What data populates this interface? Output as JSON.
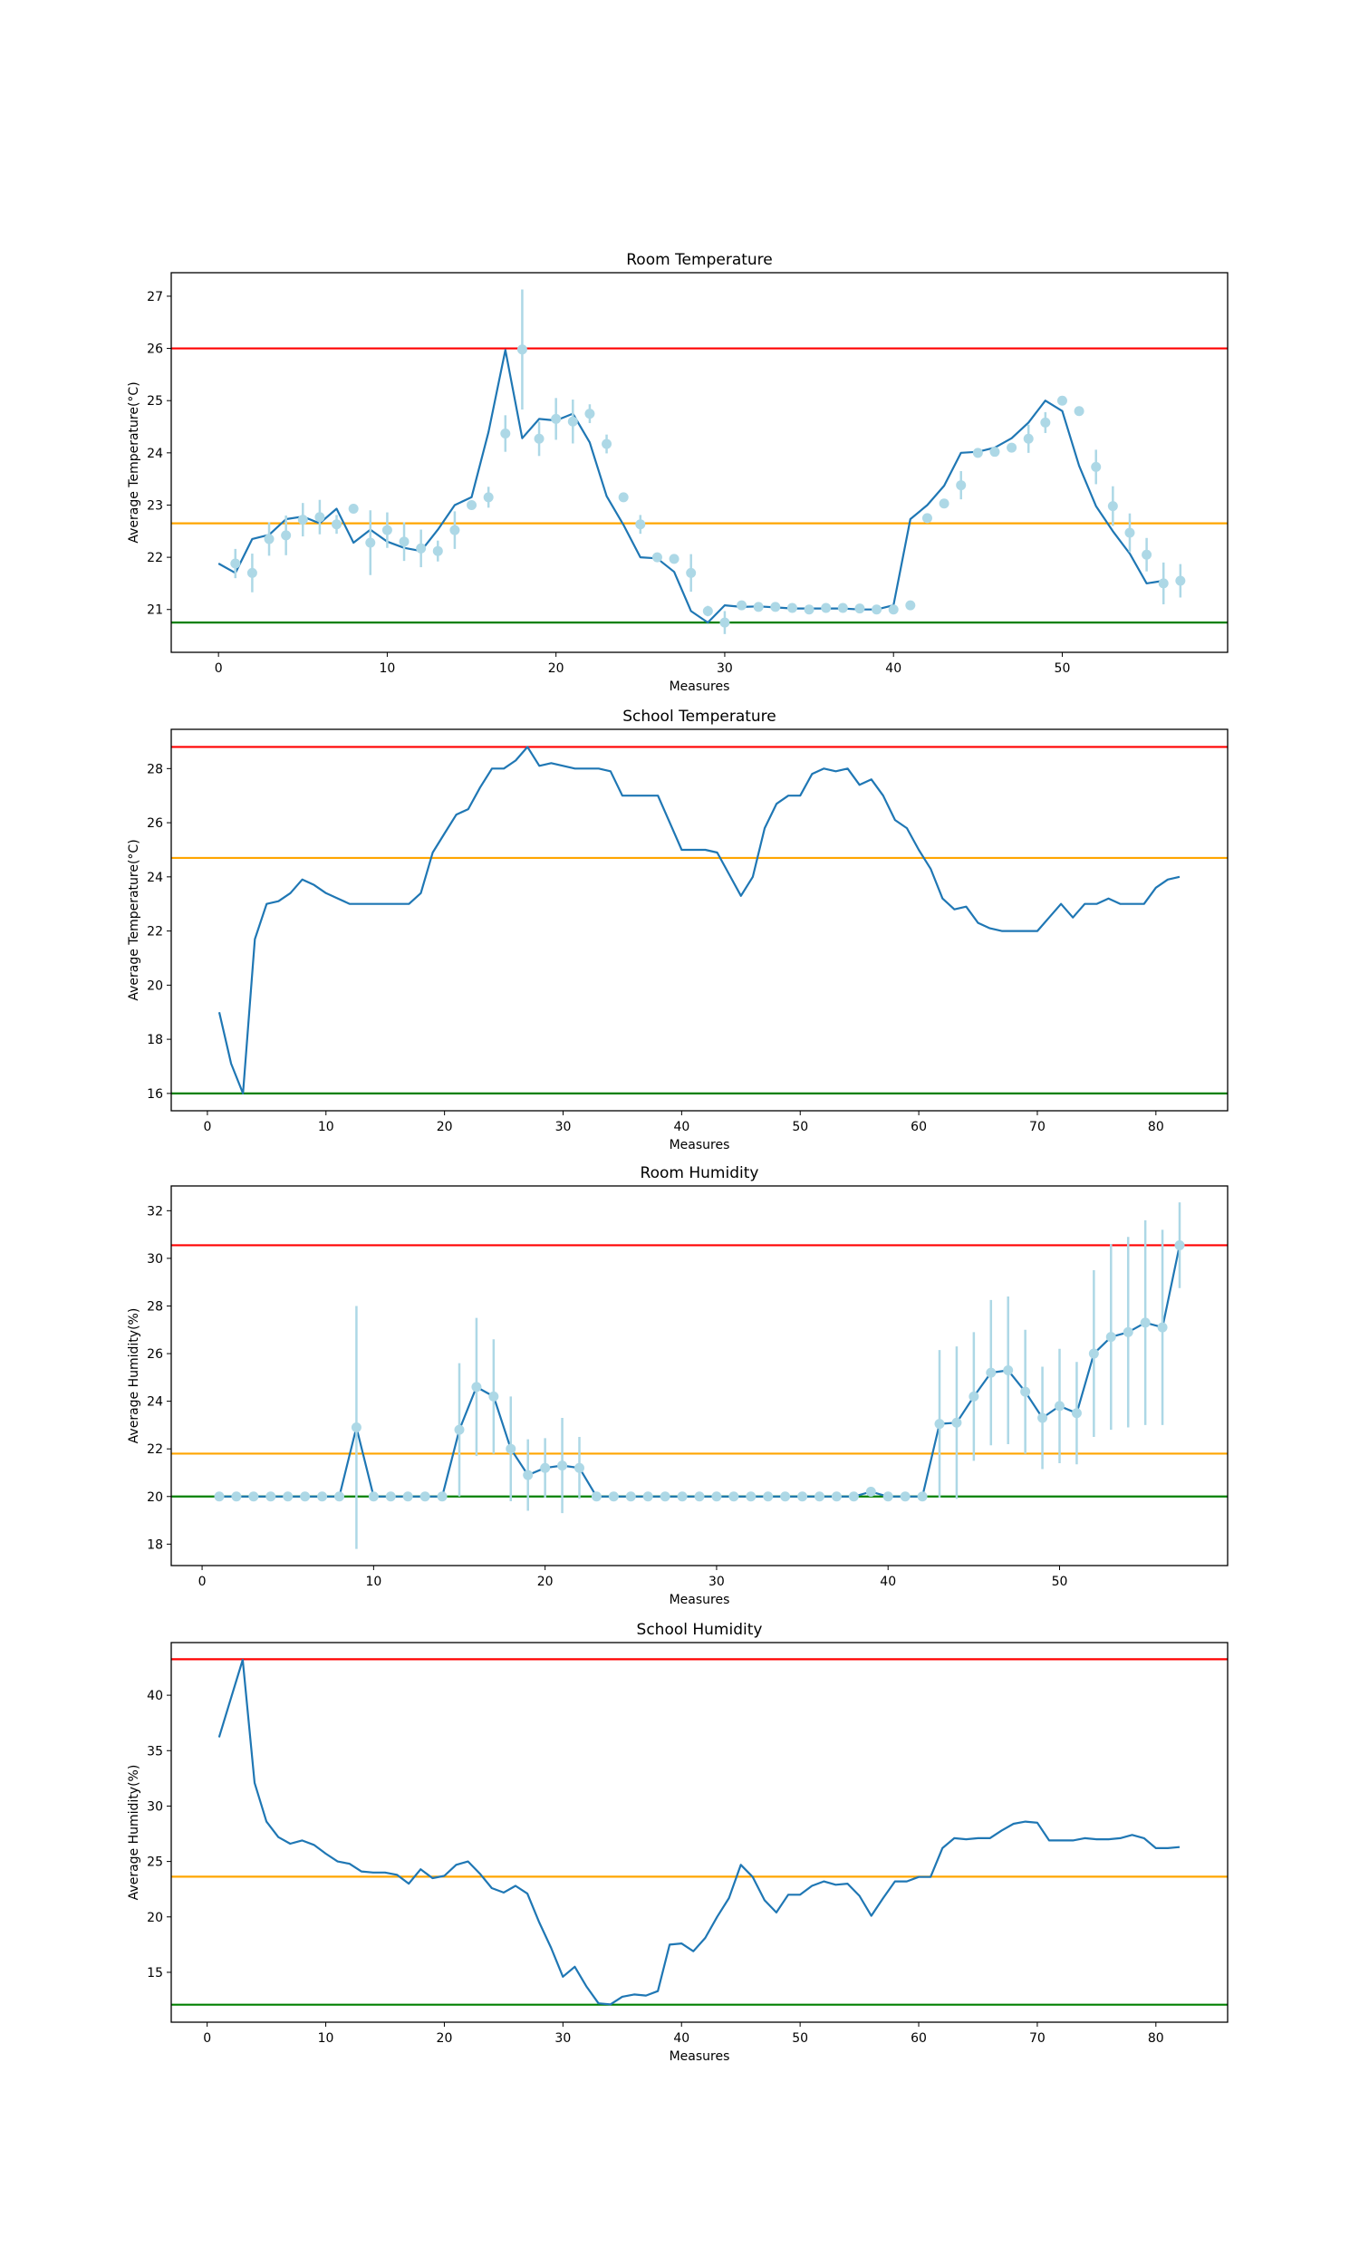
{
  "chart_data": [
    {
      "type": "line",
      "title": "Room Temperature",
      "xlabel": "Measures",
      "ylabel": "Average Temperature(°C)",
      "xlim": [
        -2.8,
        59.8
      ],
      "ylim": [
        20.18,
        27.45
      ],
      "xticks": [
        0,
        10,
        20,
        30,
        40,
        50
      ],
      "yticks": [
        21,
        22,
        23,
        24,
        25,
        26,
        27
      ],
      "grid": false,
      "hlines": [
        {
          "y": 26.0,
          "color": "#ff0000"
        },
        {
          "y": 22.65,
          "color": "#ffa500"
        },
        {
          "y": 20.75,
          "color": "#008000"
        }
      ],
      "line": {
        "color": "#1f77b4",
        "x_start": 0,
        "values": [
          21.88,
          21.7,
          22.35,
          22.43,
          22.73,
          22.78,
          22.65,
          22.93,
          22.28,
          22.53,
          22.3,
          22.18,
          22.12,
          22.53,
          23.0,
          23.15,
          24.4,
          25.97,
          24.28,
          24.65,
          24.62,
          24.75,
          24.2,
          23.17,
          22.62,
          22.0,
          21.98,
          21.72,
          20.97,
          20.75,
          21.08,
          21.05,
          21.06,
          21.04,
          21.02,
          21.02,
          21.02,
          21.02,
          21.0,
          21.0,
          21.08,
          22.73,
          23.0,
          23.37,
          24.0,
          24.02,
          24.1,
          24.28,
          24.58,
          25.0,
          24.8,
          23.75,
          22.98,
          22.5,
          22.07,
          21.5,
          21.55
        ]
      },
      "errorbar": {
        "color": "#add8e6",
        "x_start": 1,
        "values": [
          21.88,
          21.7,
          22.35,
          22.42,
          22.72,
          22.77,
          22.63,
          22.93,
          22.28,
          22.52,
          22.3,
          22.17,
          22.12,
          22.52,
          23.0,
          23.15,
          24.37,
          25.98,
          24.27,
          24.65,
          24.6,
          24.75,
          24.17,
          23.15,
          22.63,
          22.0,
          21.97,
          21.7,
          20.97,
          20.75,
          21.08,
          21.05,
          21.05,
          21.03,
          21.0,
          21.03,
          21.03,
          21.02,
          21.0,
          21.0,
          21.08,
          22.75,
          23.03,
          23.38,
          24.0,
          24.02,
          24.1,
          24.27,
          24.58,
          25.0,
          24.8,
          23.73,
          22.98,
          22.47,
          22.05,
          21.5,
          21.55
        ],
        "errors": [
          0.28,
          0.37,
          0.32,
          0.38,
          0.32,
          0.33,
          0.18,
          0,
          0.62,
          0.34,
          0.37,
          0.36,
          0.2,
          0.36,
          0,
          0.2,
          0.35,
          1.15,
          0.33,
          0.4,
          0.42,
          0.18,
          0.18,
          0.08,
          0.18,
          0,
          0,
          0.36,
          0.1,
          0.22,
          0,
          0,
          0,
          0,
          0,
          0,
          0,
          0,
          0,
          0,
          0,
          0,
          0,
          0.27,
          0,
          0,
          0.08,
          0.27,
          0.2,
          0,
          0.08,
          0.33,
          0.38,
          0.37,
          0.32,
          0.4,
          0.32
        ]
      }
    },
    {
      "type": "line",
      "title": "School Temperature",
      "xlabel": "Measures",
      "ylabel": "Average Temperature(°C)",
      "xlim": [
        -3.05,
        86.05
      ],
      "ylim": [
        15.36,
        29.45
      ],
      "xticks": [
        0,
        10,
        20,
        30,
        40,
        50,
        60,
        70,
        80
      ],
      "yticks": [
        16,
        18,
        20,
        22,
        24,
        26,
        28
      ],
      "grid": false,
      "hlines": [
        {
          "y": 28.8,
          "color": "#ff0000"
        },
        {
          "y": 24.7,
          "color": "#ffa500"
        },
        {
          "y": 16.0,
          "color": "#008000"
        }
      ],
      "line": {
        "color": "#1f77b4",
        "x_start": 1,
        "values": [
          19.0,
          17.1,
          16.0,
          21.7,
          23.0,
          23.1,
          23.4,
          23.9,
          23.7,
          23.4,
          23.2,
          23.0,
          23.0,
          23.0,
          23.0,
          23.0,
          23.0,
          23.4,
          24.9,
          25.6,
          26.3,
          26.5,
          27.3,
          28.0,
          28.0,
          28.3,
          28.8,
          28.1,
          28.2,
          28.1,
          28.0,
          28.0,
          28.0,
          27.9,
          27.0,
          27.0,
          27.0,
          27.0,
          26.0,
          25.0,
          25.0,
          25.0,
          24.9,
          24.1,
          23.3,
          24.0,
          25.8,
          26.7,
          27.0,
          27.0,
          27.8,
          28.0,
          27.9,
          28.0,
          27.4,
          27.6,
          27.0,
          26.1,
          25.8,
          25.0,
          24.3,
          23.2,
          22.8,
          22.9,
          22.3,
          22.1,
          22.0,
          22.0,
          22.0,
          22.0,
          22.5,
          23.0,
          22.5,
          23.0,
          23.0,
          23.2,
          23.0,
          23.0,
          23.0,
          23.6,
          23.9,
          24.0
        ]
      }
    },
    {
      "type": "line",
      "title": "Room Humidity",
      "xlabel": "Measures",
      "ylabel": "Average Humidity(%)",
      "xlim": [
        -1.8,
        59.8
      ],
      "ylim": [
        17.1,
        33.04
      ],
      "xticks": [
        0,
        10,
        20,
        30,
        40,
        50
      ],
      "yticks": [
        18,
        20,
        22,
        24,
        26,
        28,
        30,
        32
      ],
      "grid": false,
      "hlines": [
        {
          "y": 30.55,
          "color": "#ff0000"
        },
        {
          "y": 21.8,
          "color": "#ffa500"
        },
        {
          "y": 20.0,
          "color": "#008000"
        }
      ],
      "line": {
        "color": "#1f77b4",
        "x_start": 1,
        "values": [
          20,
          20,
          20,
          20,
          20,
          20,
          20,
          20,
          22.9,
          20,
          20,
          20,
          20,
          20,
          22.8,
          24.6,
          24.2,
          22.0,
          20.9,
          21.2,
          21.3,
          21.2,
          20,
          20,
          20,
          20,
          20,
          20,
          20,
          20,
          20,
          20,
          20,
          20,
          20,
          20,
          20,
          20,
          20.2,
          20,
          20,
          20,
          23.05,
          23.1,
          24.2,
          25.2,
          25.3,
          24.4,
          23.3,
          23.8,
          23.5,
          26.0,
          26.7,
          26.9,
          27.3,
          27.1,
          30.55
        ]
      },
      "errorbar": {
        "color": "#add8e6",
        "x_start": 1,
        "values": [
          20,
          20,
          20,
          20,
          20,
          20,
          20,
          20,
          22.9,
          20,
          20,
          20,
          20,
          20,
          22.8,
          24.6,
          24.2,
          22.0,
          20.9,
          21.2,
          21.3,
          21.2,
          20,
          20,
          20,
          20,
          20,
          20,
          20,
          20,
          20,
          20,
          20,
          20,
          20,
          20,
          20,
          20,
          20.2,
          20,
          20,
          20,
          23.05,
          23.1,
          24.2,
          25.2,
          25.3,
          24.4,
          23.3,
          23.8,
          23.5,
          26.0,
          26.7,
          26.9,
          27.3,
          27.1,
          30.55
        ],
        "errors": [
          0,
          0,
          0,
          0,
          0,
          0,
          0,
          0,
          5.1,
          0,
          0,
          0,
          0,
          0,
          2.8,
          2.9,
          2.4,
          2.2,
          1.5,
          1.25,
          2.0,
          1.3,
          0,
          0,
          0,
          0,
          0,
          0,
          0,
          0,
          0,
          0,
          0,
          0,
          0,
          0,
          0,
          0,
          0.2,
          0,
          0,
          0,
          3.1,
          3.2,
          2.7,
          3.05,
          3.1,
          2.6,
          2.15,
          2.4,
          2.15,
          3.5,
          3.9,
          4.0,
          4.3,
          4.1,
          1.8
        ]
      }
    },
    {
      "type": "line",
      "title": "School Humidity",
      "xlabel": "Measures",
      "ylabel": "Average Humidity(%)",
      "xlim": [
        -3.03,
        86.05
      ],
      "ylim": [
        10.5,
        44.75
      ],
      "xticks": [
        0,
        10,
        20,
        30,
        40,
        50,
        60,
        70,
        80
      ],
      "yticks": [
        15,
        20,
        25,
        30,
        35,
        40
      ],
      "grid": false,
      "hlines": [
        {
          "y": 43.25,
          "color": "#ff0000"
        },
        {
          "y": 23.63,
          "color": "#ffa500"
        },
        {
          "y": 12.08,
          "color": "#008000"
        }
      ],
      "line": {
        "color": "#1f77b4",
        "x_start": 1,
        "values": [
          36.2,
          39.7,
          43.2,
          32.1,
          28.6,
          27.2,
          26.6,
          26.9,
          26.5,
          25.7,
          25.0,
          24.8,
          24.1,
          24.0,
          24.0,
          23.8,
          23.0,
          24.3,
          23.5,
          23.7,
          24.7,
          25.0,
          23.9,
          22.6,
          22.2,
          22.8,
          22.1,
          19.5,
          17.2,
          14.6,
          15.5,
          13.7,
          12.2,
          12.1,
          12.8,
          13.0,
          12.9,
          13.3,
          17.5,
          17.6,
          16.9,
          18.1,
          20.0,
          21.7,
          24.7,
          23.6,
          21.5,
          20.4,
          22.0,
          22.0,
          22.8,
          23.2,
          22.9,
          23.0,
          21.9,
          20.1,
          21.7,
          23.2,
          23.2,
          23.6,
          23.6,
          26.2,
          27.1,
          27.0,
          27.1,
          27.1,
          27.8,
          28.4,
          28.6,
          28.5,
          26.9,
          26.9,
          26.9,
          27.1,
          27.0,
          27.0,
          27.1,
          27.4,
          27.1,
          26.2,
          26.2,
          26.3
        ]
      }
    }
  ]
}
